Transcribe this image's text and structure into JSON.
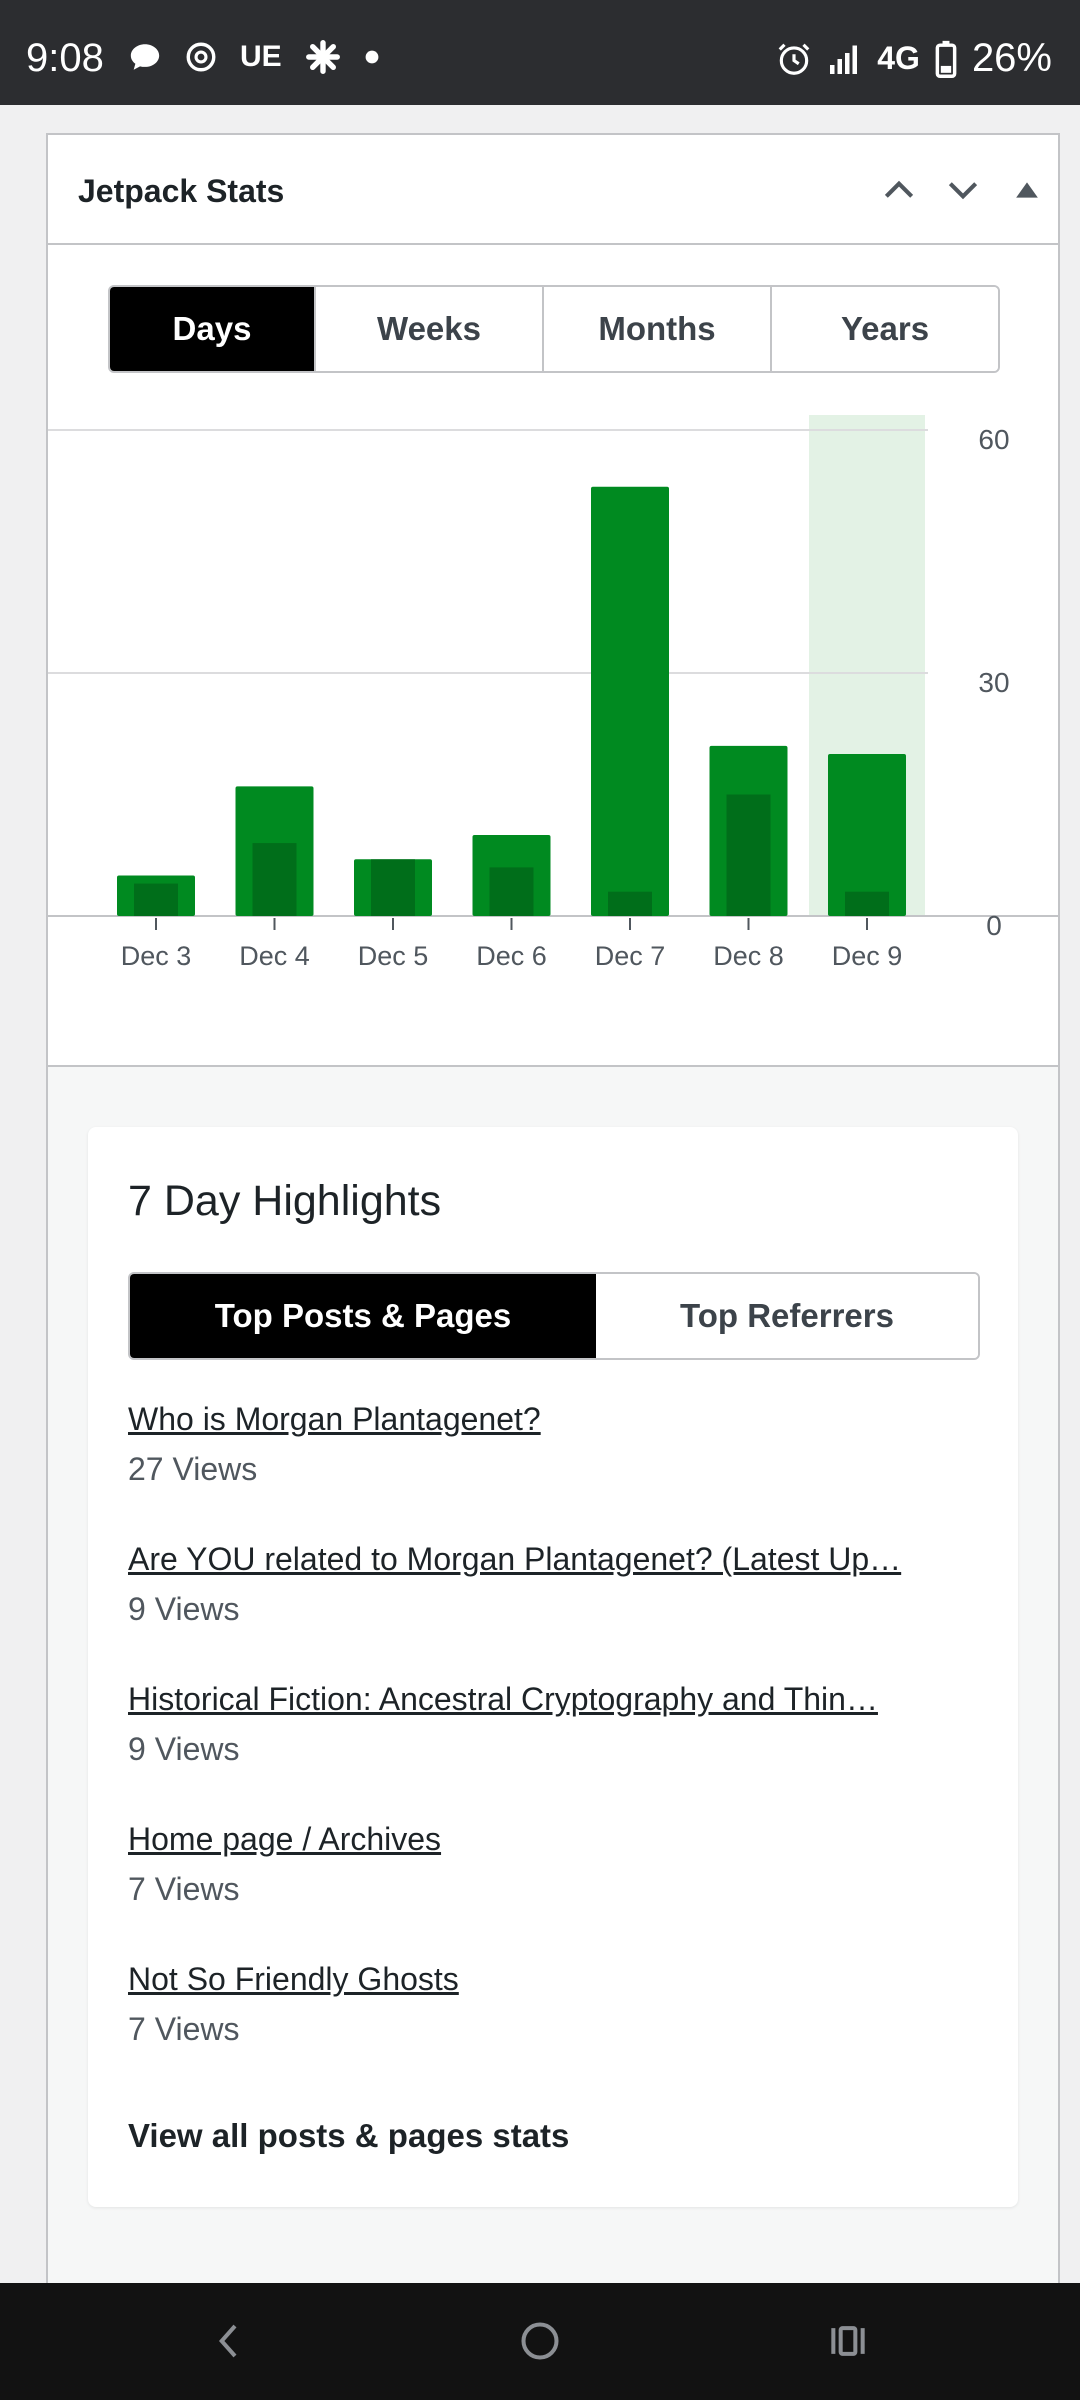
{
  "status_bar": {
    "time": "9:08",
    "notification_icons": [
      "chat-bubble-icon",
      "threads-icon",
      "ue-icon",
      "slack-icon",
      "dot-icon"
    ],
    "ue_label": "UE",
    "network": "4G",
    "battery": "26%"
  },
  "widget": {
    "title": "Jetpack Stats",
    "period_tabs": [
      "Days",
      "Weeks",
      "Months",
      "Years"
    ],
    "active_period": "Days"
  },
  "chart_data": {
    "type": "bar",
    "categories": [
      "Dec 3",
      "Dec 4",
      "Dec 5",
      "Dec 6",
      "Dec 7",
      "Dec 8",
      "Dec 9"
    ],
    "series": [
      {
        "name": "",
        "values": [
          5,
          16,
          7,
          10,
          53,
          21,
          20
        ]
      },
      {
        "name": "",
        "values": [
          4,
          9,
          7,
          6,
          3,
          15,
          3
        ]
      }
    ],
    "ylim": [
      0,
      60
    ],
    "yticks": [
      "0",
      "30",
      "60"
    ],
    "highlighted_category": "Dec 9",
    "grid": true,
    "colors": {
      "primary": "#008a20",
      "secondary": "#006e1a",
      "highlight": "#e3f2e5"
    }
  },
  "highlights": {
    "title": "7 Day Highlights",
    "tabs": [
      "Top Posts & Pages",
      "Top Referrers"
    ],
    "active_tab": "Top Posts & Pages",
    "posts": [
      {
        "title": "Who is Morgan Plantagenet?",
        "views": "27 Views"
      },
      {
        "title": "Are YOU related to Morgan Plantagenet? (Latest Up…",
        "views": "9 Views"
      },
      {
        "title": "Historical Fiction: Ancestral Cryptography and Thin…",
        "views": "9 Views"
      },
      {
        "title": "Home page / Archives",
        "views": "7 Views"
      },
      {
        "title": "Not So Friendly Ghosts",
        "views": "7 Views"
      }
    ],
    "view_all": "View all posts & pages stats"
  }
}
